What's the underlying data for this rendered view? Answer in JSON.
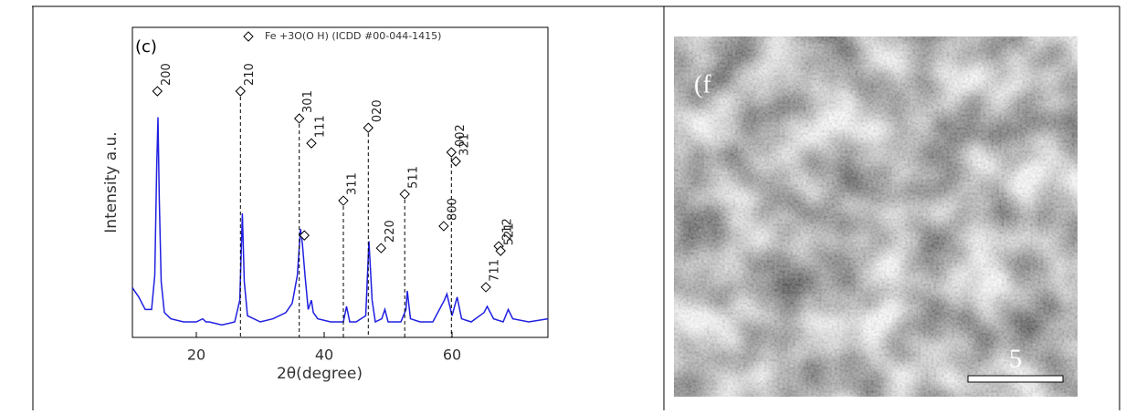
{
  "chart_data": {
    "type": "line",
    "panel_label": "(c)",
    "legend": "Fe +3O(O H) (ICDD #00-044-1415)",
    "x_label": "2θ(degree)",
    "y_label": "Intensity a.u.",
    "xlim": [
      10,
      75
    ],
    "xticks": [
      20,
      40,
      60
    ],
    "ylim": [
      0,
      100
    ],
    "color": "#1f1fe0",
    "x": [
      10,
      11,
      12,
      13,
      13.5,
      13.8,
      14,
      14.2,
      14.5,
      15,
      16,
      18,
      20,
      21,
      21.5,
      22,
      24,
      26,
      26.8,
      27.2,
      27.5,
      28,
      30,
      32,
      34,
      35,
      35.8,
      36.3,
      36.6,
      37,
      37.5,
      38,
      38.3,
      39,
      41,
      43,
      43.5,
      44,
      45,
      46.5,
      47,
      47.5,
      48,
      49,
      49.5,
      50,
      52,
      52.8,
      53,
      53.5,
      55,
      57,
      58.8,
      59.2,
      60,
      60.8,
      61.5,
      63,
      65,
      65.5,
      66.5,
      68,
      68.8,
      69.5,
      72,
      75
    ],
    "values": [
      16,
      13,
      9,
      9,
      20,
      55,
      71,
      45,
      18,
      8,
      6,
      5,
      5,
      6,
      5,
      5,
      4,
      5,
      12,
      40,
      18,
      7,
      5,
      6,
      8,
      11,
      20,
      35,
      30,
      20,
      9,
      12,
      8,
      6,
      5,
      5,
      10,
      5,
      5,
      7,
      31,
      12,
      5,
      6,
      9,
      5,
      5,
      9,
      15,
      6,
      5,
      5,
      12,
      14,
      7,
      13,
      6,
      5,
      8,
      10,
      6,
      5,
      9,
      6,
      5,
      6
    ],
    "annotations": [
      {
        "label": "200",
        "x": 13.9,
        "y": 79.4,
        "dashed": false
      },
      {
        "label": "210",
        "x": 26.9,
        "y": 79.4,
        "dashed": true
      },
      {
        "label": "301",
        "x": 36.1,
        "y": 70.6,
        "dashed": true
      },
      {
        "label": "111",
        "x": 38,
        "y": 62.6,
        "dashed": false
      },
      {
        "label": null,
        "x": 36.9,
        "y": 32.9,
        "dashed": false
      },
      {
        "label": "311",
        "x": 43,
        "y": 44.1,
        "dashed": true
      },
      {
        "label": "020",
        "x": 46.9,
        "y": 67.6,
        "dashed": true
      },
      {
        "label": "220",
        "x": 48.9,
        "y": 28.8,
        "dashed": false
      },
      {
        "label": "511",
        "x": 52.6,
        "y": 46.2,
        "dashed": true
      },
      {
        "label": "800",
        "x": 58.7,
        "y": 35.9,
        "dashed": false
      },
      {
        "label": "002",
        "x": 59.9,
        "y": 59.7,
        "dashed": true
      },
      {
        "label": "321",
        "x": 60.6,
        "y": 56.8,
        "dashed": false
      },
      {
        "label": "711",
        "x": 65.3,
        "y": 16.2,
        "dashed": false
      },
      {
        "label": "212",
        "x": 67.3,
        "y": 29.4,
        "dashed": false
      },
      {
        "label": "521",
        "x": 67.6,
        "y": 27.9,
        "dashed": false
      }
    ]
  },
  "image": {
    "panel_label": "(f",
    "scale_label": "5"
  }
}
